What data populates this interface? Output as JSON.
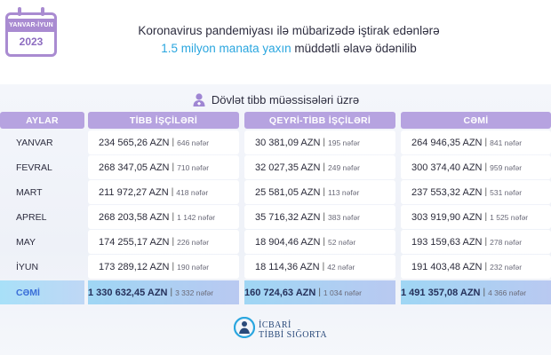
{
  "calendar": {
    "period": "YANVAR-İYUN",
    "year": "2023"
  },
  "headline": {
    "line1": "Koronavirus pandemiyası ilə mübarizədə iştirak edənlərə",
    "line2_highlight": "1.5 milyon manata yaxın",
    "line2_rest": " müddətli əlavə ödənilib"
  },
  "subhead": "Dövlət tibb müəssisələri üzrə",
  "table": {
    "headers": [
      "AYLAR",
      "TİBB İŞÇİLƏRİ",
      "QEYRİ-TİBB İŞÇİLƏRİ",
      "CƏMİ"
    ],
    "rows": [
      {
        "month": "YANVAR",
        "cells": [
          {
            "amount": "234 565,26 AZN",
            "count": "646 nəfər"
          },
          {
            "amount": "30 381,09 AZN",
            "count": "195 nəfər"
          },
          {
            "amount": "264 946,35 AZN",
            "count": "841 nəfər"
          }
        ]
      },
      {
        "month": "FEVRAL",
        "cells": [
          {
            "amount": "268 347,05 AZN",
            "count": "710 nəfər"
          },
          {
            "amount": "32 027,35 AZN",
            "count": "249 nəfər"
          },
          {
            "amount": "300 374,40 AZN",
            "count": "959 nəfər"
          }
        ]
      },
      {
        "month": "MART",
        "cells": [
          {
            "amount": "211 972,27 AZN",
            "count": "418 nəfər"
          },
          {
            "amount": "25 581,05 AZN",
            "count": "113 nəfər"
          },
          {
            "amount": "237 553,32 AZN",
            "count": "531 nəfər"
          }
        ]
      },
      {
        "month": "APREL",
        "cells": [
          {
            "amount": "268 203,58 AZN",
            "count": "1 142 nəfər"
          },
          {
            "amount": "35 716,32 AZN",
            "count": "383 nəfər"
          },
          {
            "amount": "303 919,90 AZN",
            "count": "1 525 nəfər"
          }
        ]
      },
      {
        "month": "MAY",
        "cells": [
          {
            "amount": "174 255,17 AZN",
            "count": "226 nəfər"
          },
          {
            "amount": "18 904,46 AZN",
            "count": "52 nəfər"
          },
          {
            "amount": "193 159,63 AZN",
            "count": "278 nəfər"
          }
        ]
      },
      {
        "month": "İYUN",
        "cells": [
          {
            "amount": "173 289,12 AZN",
            "count": "190 nəfər"
          },
          {
            "amount": "18 114,36 AZN",
            "count": "42 nəfər"
          },
          {
            "amount": "191 403,48 AZN",
            "count": "232 nəfər"
          }
        ]
      }
    ],
    "total": {
      "month": "CƏMİ",
      "cells": [
        {
          "amount": "1 330 632,45 AZN",
          "count": "3 332 nəfər"
        },
        {
          "amount": "160 724,63 AZN",
          "count": "1 034 nəfər"
        },
        {
          "amount": "1 491 357,08 AZN",
          "count": "4 366 nəfər"
        }
      ]
    }
  },
  "logo": {
    "line1": "İCBARİ",
    "line2": "TİBBİ SIĞORTA"
  },
  "colors": {
    "header": "#b6a3e0",
    "accent": "#2aa6df",
    "total": "#9fd6f4",
    "calendar": "#a98bd1"
  }
}
